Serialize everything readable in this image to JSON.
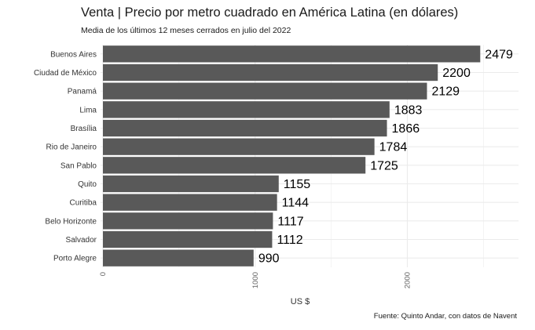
{
  "chart_data": {
    "type": "bar",
    "orientation": "horizontal",
    "title": "Venta | Precio por metro cuadrado en América Latina (en dólares)",
    "subtitle": "Media de los últimos 12 meses cerrados en julio del 2022",
    "caption": "Fuente: Quinto Andar, con datos de Navent",
    "xlabel": "US $",
    "ylabel": "",
    "categories": [
      "Buenos Aires",
      "Ciudad de México",
      "Panamá",
      "Lima",
      "Brasília",
      "Rio de Janeiro",
      "San Pablo",
      "Quito",
      "Curitiba",
      "Belo Horizonte",
      "Salvador",
      "Porto Alegre"
    ],
    "values": [
      2479,
      2200,
      2129,
      1883,
      1866,
      1784,
      1725,
      1155,
      1144,
      1117,
      1112,
      990
    ],
    "xticks": [
      0,
      1000,
      2000
    ],
    "xlim": [
      0,
      2700
    ],
    "grid": true,
    "colors": {
      "bar": "#595959",
      "grid": "#ebebeb",
      "background": "#ffffff"
    }
  }
}
